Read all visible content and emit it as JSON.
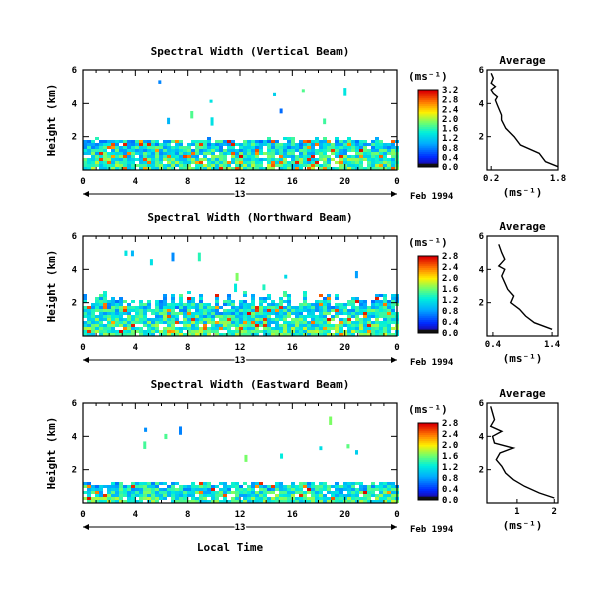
{
  "figure": {
    "x_axis_label": "Local Time",
    "date_label": "Feb 1994",
    "day_label": "13",
    "units_label": "(ms⁻¹)",
    "profile_title": "Average"
  },
  "chart_data": [
    {
      "type": "heatmap",
      "title": "Spectral Width (Vertical Beam)",
      "xlabel": "",
      "ylabel": "Height (km)",
      "xlim": [
        0,
        24
      ],
      "ylim": [
        0,
        6
      ],
      "x_ticks": [
        "0",
        "4",
        "8",
        "12",
        "16",
        "20",
        "0"
      ],
      "y_ticks": [
        "2",
        "4",
        "6"
      ],
      "colorbar_ticks": [
        "0.0",
        "0.4",
        "0.8",
        "1.2",
        "1.6",
        "2.0",
        "2.4",
        "2.8",
        "3.2"
      ],
      "colorbar_range": [
        0,
        3.2
      ],
      "data_top_km": 1.9,
      "profile": {
        "title": "Average",
        "xlabel": "(ms⁻¹)",
        "xlim": [
          0.1,
          1.8
        ],
        "x_ticks": [
          "0.2",
          "1.8"
        ],
        "ylim": [
          0,
          6
        ],
        "y_ticks": [
          "2",
          "4",
          "6"
        ],
        "x": [
          1.8,
          1.5,
          1.35,
          0.9,
          0.75,
          0.55,
          0.45,
          0.45,
          0.4,
          0.35,
          0.3,
          0.35,
          0.25,
          0.2,
          0.3,
          0.2,
          0.25,
          0.2
        ],
        "y": [
          0.2,
          0.5,
          1.0,
          1.5,
          2.0,
          2.5,
          3.0,
          3.3,
          3.6,
          3.9,
          4.2,
          4.4,
          4.6,
          4.8,
          5.0,
          5.2,
          5.5,
          5.8
        ]
      }
    },
    {
      "type": "heatmap",
      "title": "Spectral Width (Northward Beam)",
      "xlabel": "",
      "ylabel": "Height (km)",
      "xlim": [
        0,
        24
      ],
      "ylim": [
        0,
        6
      ],
      "x_ticks": [
        "0",
        "4",
        "8",
        "12",
        "16",
        "20",
        "0"
      ],
      "y_ticks": [
        "2",
        "4",
        "6"
      ],
      "colorbar_ticks": [
        "0.0",
        "0.4",
        "0.8",
        "1.2",
        "1.6",
        "2.0",
        "2.4",
        "2.8"
      ],
      "colorbar_range": [
        0,
        2.8
      ],
      "data_top_km": 2.3,
      "profile": {
        "title": "Average",
        "xlabel": "(ms⁻¹)",
        "xlim": [
          0.3,
          1.5
        ],
        "x_ticks": [
          "0.4",
          "1.4"
        ],
        "ylim": [
          0,
          6
        ],
        "y_ticks": [
          "2",
          "4",
          "6"
        ],
        "x": [
          1.4,
          1.1,
          0.95,
          0.85,
          0.7,
          0.75,
          0.65,
          0.6,
          0.55,
          0.6,
          0.5,
          0.55,
          0.6,
          0.55,
          0.5
        ],
        "y": [
          0.4,
          0.8,
          1.2,
          1.6,
          2.0,
          2.4,
          2.8,
          3.2,
          3.6,
          4.0,
          4.2,
          4.4,
          4.6,
          5.0,
          5.5
        ]
      }
    },
    {
      "type": "heatmap",
      "title": "Spectral Width (Eastward Beam)",
      "xlabel": "Local Time",
      "ylabel": "Height (km)",
      "xlim": [
        0,
        24
      ],
      "ylim": [
        0,
        6
      ],
      "x_ticks": [
        "0",
        "4",
        "8",
        "12",
        "16",
        "20",
        "0"
      ],
      "y_ticks": [
        "2",
        "4",
        "6"
      ],
      "colorbar_ticks": [
        "0.0",
        "0.4",
        "0.8",
        "1.2",
        "1.6",
        "2.0",
        "2.4",
        "2.8"
      ],
      "colorbar_range": [
        0,
        2.8
      ],
      "data_top_km": 1.3,
      "profile": {
        "title": "Average",
        "xlabel": "(ms⁻¹)",
        "xlim": [
          0.2,
          2.1
        ],
        "x_ticks": [
          "1",
          "2"
        ],
        "ylim": [
          0,
          6
        ],
        "y_ticks": [
          "2",
          "4",
          "6"
        ],
        "x": [
          2.0,
          1.6,
          1.2,
          0.9,
          0.7,
          0.6,
          0.45,
          0.55,
          0.9,
          0.4,
          0.35,
          0.6,
          0.3,
          0.4,
          0.35,
          0.3
        ],
        "y": [
          0.3,
          0.6,
          1.0,
          1.4,
          1.8,
          2.2,
          2.6,
          3.0,
          3.3,
          3.6,
          4.0,
          4.3,
          4.6,
          5.0,
          5.4,
          5.8
        ]
      }
    }
  ]
}
